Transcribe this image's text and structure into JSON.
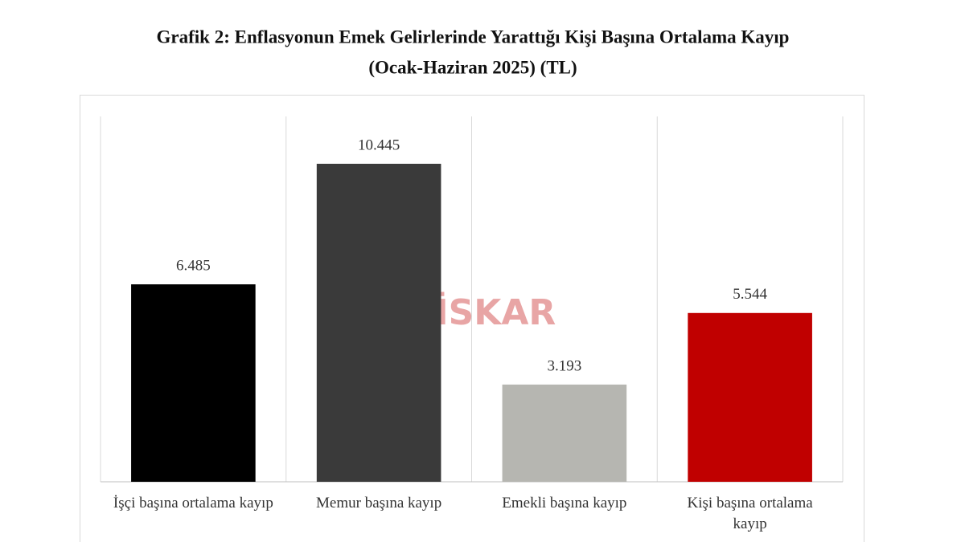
{
  "chart_data": {
    "type": "bar",
    "title": "Grafik 2: Enflasyonun Emek Gelirlerinde Yarattığı Kişi Başına Ortalama Kayıp",
    "subtitle": "(Ocak-Haziran 2025) (TL)",
    "watermark": "DİSKAR",
    "categories": [
      "İşçi başına ortalama kayıp",
      "Memur başına kayıp",
      "Emekli başına kayıp",
      "Kişi başına ortalama kayıp"
    ],
    "values": [
      6485,
      10445,
      3193,
      5544
    ],
    "value_labels": [
      "6.485",
      "10.445",
      "3.193",
      "5.544"
    ],
    "colors": [
      "#000000",
      "#3a3a3a",
      "#b6b6b1",
      "#c00000"
    ],
    "ylim": [
      0,
      12000
    ]
  }
}
